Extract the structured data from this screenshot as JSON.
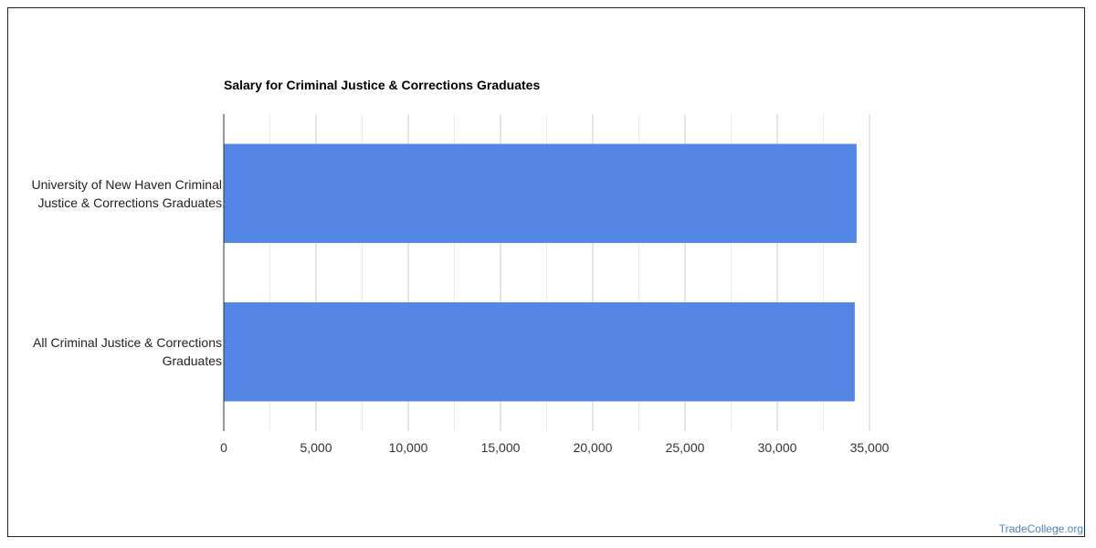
{
  "chart_data": {
    "type": "bar",
    "orientation": "horizontal",
    "title": "Salary for Criminal Justice & Corrections Graduates",
    "categories": [
      "University of New Haven Criminal Justice & Corrections Graduates",
      "All Criminal Justice & Corrections Graduates"
    ],
    "values": [
      34300,
      34200
    ],
    "xlabel": "",
    "ylabel": "",
    "xlim": [
      0,
      35000
    ],
    "xticks": [
      0,
      5000,
      10000,
      15000,
      20000,
      25000,
      30000,
      35000
    ],
    "tick_labels": [
      "0",
      "5,000",
      "10,000",
      "15,000",
      "20,000",
      "25,000",
      "30,000",
      "35,000"
    ],
    "grid": true,
    "bar_color": "#5386e4"
  },
  "watermark": "TradeCollege.org"
}
